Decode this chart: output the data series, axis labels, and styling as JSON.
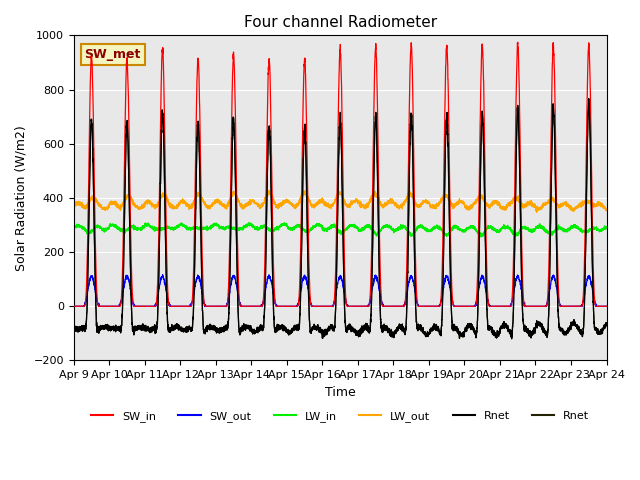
{
  "title": "Four channel Radiometer",
  "xlabel": "Time",
  "ylabel": "Solar Radiation (W/m2)",
  "ylim": [
    -200,
    1000
  ],
  "annotation": "SW_met",
  "x_tick_labels": [
    "Apr 9",
    "Apr 10",
    "Apr 11",
    "Apr 12",
    "Apr 13",
    "Apr 14",
    "Apr 15",
    "Apr 16",
    "Apr 17",
    "Apr 18",
    "Apr 19",
    "Apr 20",
    "Apr 21",
    "Apr 22",
    "Apr 23",
    "Apr 24"
  ],
  "background_color": "#e8e8e8",
  "n_days": 15,
  "ppd": 288,
  "sw_in_peaks": [
    920,
    910,
    950,
    910,
    930,
    910,
    910,
    945,
    960,
    970,
    960,
    960,
    960,
    960,
    960
  ],
  "lw_in_base": 290,
  "lw_out_base": 370,
  "sw_out_peak": 110,
  "night_rnet": -85
}
